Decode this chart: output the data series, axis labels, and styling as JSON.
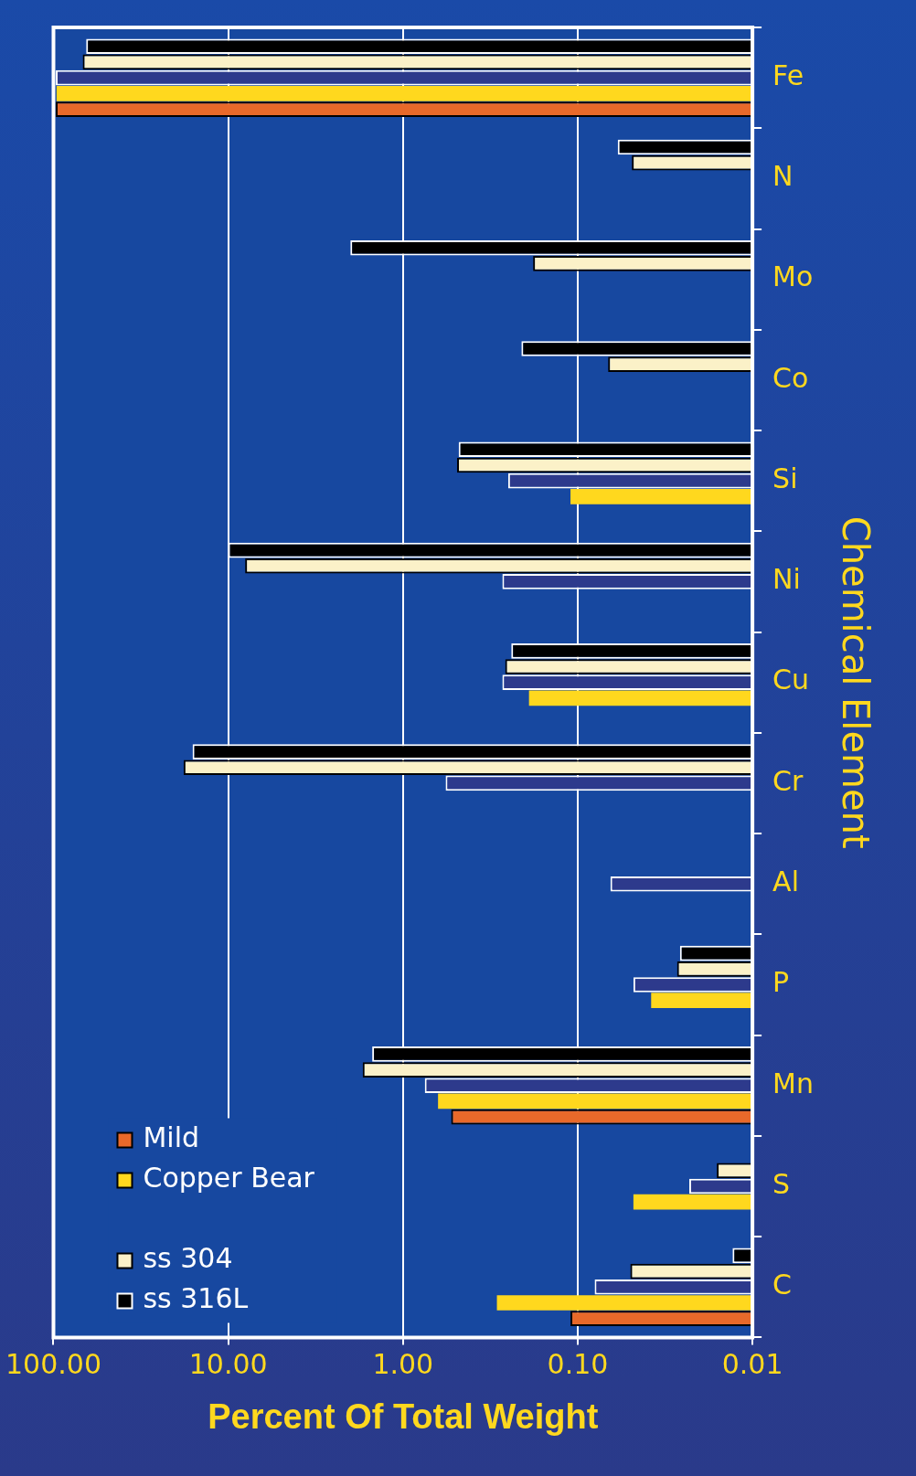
{
  "chart_data": {
    "type": "bar",
    "orientation": "horizontal",
    "xlabel": "Percent Of Total Weight",
    "ylabel": "Chemical Element",
    "categories": [
      "Fe",
      "N",
      "Mo",
      "Co",
      "Si",
      "Ni",
      "Cu",
      "Cr",
      "Al",
      "P",
      "Mn",
      "S",
      "C"
    ],
    "series": [
      {
        "name": "Mild",
        "color": "#e8692a",
        "values": [
          97,
          null,
          null,
          null,
          null,
          null,
          null,
          null,
          null,
          null,
          0.53,
          null,
          0.11
        ]
      },
      {
        "name": "Copper Bear",
        "color": "#ffd81e",
        "values": [
          96,
          null,
          null,
          null,
          0.11,
          null,
          0.19,
          null,
          null,
          0.038,
          0.63,
          0.048,
          0.29
        ]
      },
      {
        "color": "#2d3a8c",
        "values": [
          97,
          null,
          null,
          null,
          0.25,
          0.27,
          0.27,
          0.57,
          0.065,
          0.048,
          0.75,
          0.023,
          0.08
        ]
      },
      {
        "name": "ss 304",
        "color": "#fbf1c8",
        "values": [
          68,
          0.049,
          0.18,
          0.067,
          0.49,
          8,
          0.26,
          18,
          null,
          0.027,
          1.7,
          0.016,
          0.05
        ]
      },
      {
        "name": "ss 316L",
        "color": "#000000",
        "values": [
          65,
          0.059,
          2.0,
          0.21,
          0.48,
          10,
          0.24,
          16,
          null,
          0.026,
          1.5,
          null,
          0.013
        ]
      }
    ],
    "log": "x",
    "xlim": [
      100,
      0.01
    ],
    "xticks": [
      {
        "value": 100,
        "label": "100.00"
      },
      {
        "value": 10,
        "label": "10.00"
      },
      {
        "value": 1,
        "label": "1.00"
      },
      {
        "value": 0.1,
        "label": "0.10"
      },
      {
        "value": 0.01,
        "label": "0.01"
      }
    ],
    "grid": "x",
    "legend": "bottom left"
  }
}
